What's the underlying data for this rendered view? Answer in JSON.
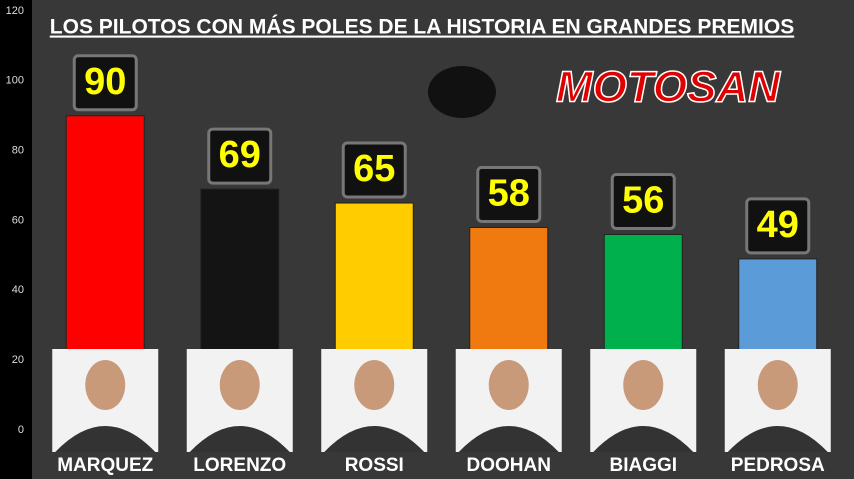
{
  "chart_data": {
    "type": "bar",
    "title": "LOS PILOTOS CON MÁS POLES DE LA HISTORIA EN GRANDES PREMIOS",
    "logo": "MOTOSAN",
    "categories": [
      "MARQUEZ",
      "LORENZO",
      "ROSSI",
      "DOOHAN",
      "BIAGGI",
      "PEDROSA"
    ],
    "values": [
      90,
      69,
      65,
      58,
      56,
      49
    ],
    "colors": [
      "#ff0000",
      "#141414",
      "#ffcc00",
      "#f07a10",
      "#00b04c",
      "#5b9bd8"
    ],
    "ylim": [
      0,
      120
    ],
    "yticks": [
      0,
      20,
      40,
      60,
      80,
      100,
      120
    ],
    "grid": false
  }
}
